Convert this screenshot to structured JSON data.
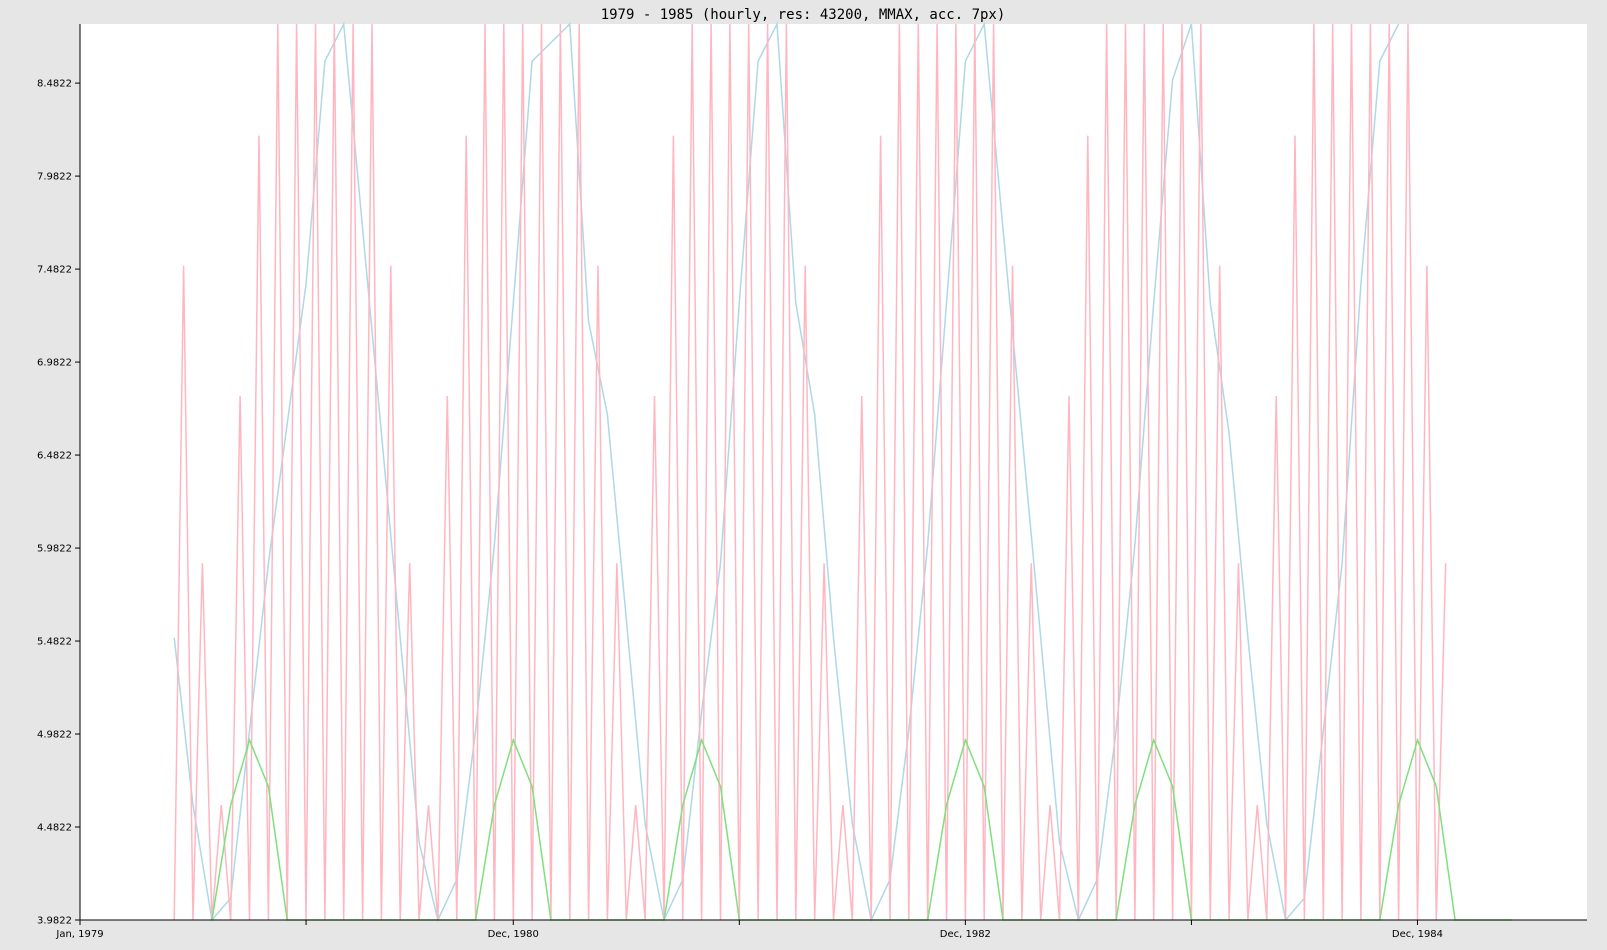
{
  "chart_data": {
    "type": "line",
    "title": "1979 - 1985 (hourly, res: 43200, MMAX, acc. 7px)",
    "xlabel": "",
    "ylabel": "",
    "x_range": [
      "1979-01",
      "1985-09"
    ],
    "ylim": [
      3.9822,
      8.8
    ],
    "y_ticks": [
      "3.9822",
      "4.4822",
      "4.9822",
      "5.4822",
      "5.9822",
      "6.4822",
      "6.9822",
      "7.4822",
      "7.9822",
      "8.4822"
    ],
    "x_ticks": [
      {
        "label": "Jan, 1979",
        "x": "1979-01"
      },
      {
        "label": "",
        "x": "1980-01"
      },
      {
        "label": "Dec, 1980",
        "x": "1980-12"
      },
      {
        "label": "",
        "x": "1981-12"
      },
      {
        "label": "Dec, 1982",
        "x": "1982-12"
      },
      {
        "label": "",
        "x": "1983-12"
      },
      {
        "label": "Dec, 1984",
        "x": "1984-12"
      },
      {
        "label": "",
        "x": "1985-12"
      }
    ],
    "grid": false,
    "legend": "none",
    "series": [
      {
        "color": "#add8e6",
        "x": [
          "1979-06",
          "1979-07",
          "1979-08",
          "1979-09",
          "1979-10",
          "1979-11",
          "1980-01",
          "1980-02",
          "1980-03",
          "1980-04",
          "1980-05",
          "1980-06",
          "1980-07",
          "1980-08",
          "1980-09",
          "1980-10",
          "1980-11",
          "1980-12",
          "1981-01",
          "1981-03",
          "1981-04",
          "1981-05",
          "1981-06",
          "1981-07",
          "1981-08",
          "1981-09",
          "1981-10",
          "1981-11",
          "1981-12",
          "1982-01",
          "1982-02",
          "1982-03",
          "1982-04",
          "1982-05",
          "1982-06",
          "1982-07",
          "1982-08",
          "1982-09",
          "1982-10",
          "1982-11",
          "1982-12",
          "1983-01",
          "1983-02",
          "1983-03",
          "1983-04",
          "1983-05",
          "1983-06",
          "1983-07",
          "1983-08",
          "1983-09",
          "1983-10",
          "1983-11",
          "1983-12",
          "1984-01",
          "1984-02",
          "1984-03",
          "1984-04",
          "1984-05",
          "1984-06",
          "1984-07",
          "1984-08",
          "1984-09",
          "1984-10",
          "1984-11"
        ],
        "values": [
          5.5,
          4.6,
          3.98,
          4.1,
          5.0,
          5.9,
          7.4,
          8.6,
          8.9,
          7.7,
          6.6,
          5.5,
          4.4,
          3.98,
          4.2,
          5.0,
          6.0,
          7.3,
          8.6,
          8.9,
          7.2,
          6.7,
          5.6,
          4.5,
          3.98,
          4.2,
          5.1,
          5.9,
          7.3,
          8.6,
          8.9,
          7.3,
          6.7,
          5.5,
          4.5,
          3.98,
          4.2,
          5.0,
          6.0,
          7.3,
          8.6,
          8.9,
          7.7,
          6.6,
          5.5,
          4.4,
          3.98,
          4.2,
          5.0,
          6.0,
          7.3,
          8.5,
          8.9,
          7.3,
          6.6,
          5.5,
          4.5,
          3.98,
          4.1,
          5.0,
          5.9,
          7.4,
          8.6,
          8.9
        ]
      },
      {
        "color": "#ffb6c1",
        "x": [
          "1979-06",
          "1979-06",
          "1979-07",
          "1979-07",
          "1979-08",
          "1979-08",
          "1979-09",
          "1979-09",
          "1979-10",
          "1979-10",
          "1979-11",
          "1979-11",
          "1979-12",
          "1979-12",
          "1980-01",
          "1980-01",
          "1980-02",
          "1980-02",
          "1980-03",
          "1980-03",
          "1980-04",
          "1980-04",
          "1980-05",
          "1980-05",
          "1980-06",
          "1980-06",
          "1980-07",
          "1980-07",
          "1980-08",
          "1980-08",
          "1980-09",
          "1980-09",
          "1980-10",
          "1980-10",
          "1980-11",
          "1980-11",
          "1980-12",
          "1980-12",
          "1981-01",
          "1981-01",
          "1981-02",
          "1981-02",
          "1981-03",
          "1981-03",
          "1981-04",
          "1981-04",
          "1981-05",
          "1981-05",
          "1981-06",
          "1981-06",
          "1981-07",
          "1981-07",
          "1981-08",
          "1981-08",
          "1981-09",
          "1981-09",
          "1981-10",
          "1981-10",
          "1981-11",
          "1981-11",
          "1981-12",
          "1981-12",
          "1982-01",
          "1982-01",
          "1982-02",
          "1982-02",
          "1982-03",
          "1982-03",
          "1982-04",
          "1982-04",
          "1982-05",
          "1982-05",
          "1982-06",
          "1982-06",
          "1982-07",
          "1982-07",
          "1982-08",
          "1982-08",
          "1982-09",
          "1982-09",
          "1982-10",
          "1982-10",
          "1982-11",
          "1982-11",
          "1982-12",
          "1982-12",
          "1983-01",
          "1983-01",
          "1983-02",
          "1983-02",
          "1983-03",
          "1983-03",
          "1983-04",
          "1983-04",
          "1983-05",
          "1983-05",
          "1983-06",
          "1983-06",
          "1983-07",
          "1983-07",
          "1983-08",
          "1983-08",
          "1983-09",
          "1983-09",
          "1983-10",
          "1983-10",
          "1983-11",
          "1983-11",
          "1983-12",
          "1983-12",
          "1984-01",
          "1984-01",
          "1984-02",
          "1984-02",
          "1984-03",
          "1984-03",
          "1984-04",
          "1984-04",
          "1984-05",
          "1984-05",
          "1984-06",
          "1984-06",
          "1984-07",
          "1984-07",
          "1984-08",
          "1984-08",
          "1984-09",
          "1984-09",
          "1984-10",
          "1984-10",
          "1984-11",
          "1984-11",
          "1984-12",
          "1984-12",
          "1985-01",
          "1985-01"
        ],
        "values": [
          3.98,
          7.5,
          3.98,
          5.9,
          3.98,
          4.6,
          3.98,
          6.8,
          3.98,
          8.2,
          3.98,
          8.9,
          3.98,
          8.9,
          3.98,
          8.9,
          3.98,
          8.9,
          3.98,
          8.9,
          3.98,
          8.9,
          3.98,
          7.5,
          3.98,
          5.9,
          3.98,
          4.6,
          3.98,
          6.8,
          3.98,
          8.2,
          3.98,
          8.9,
          3.98,
          8.9,
          3.98,
          8.9,
          3.98,
          8.9,
          3.98,
          8.9,
          3.98,
          8.9,
          3.98,
          7.5,
          3.98,
          5.9,
          3.98,
          4.6,
          3.98,
          6.8,
          3.98,
          8.2,
          3.98,
          8.9,
          3.98,
          8.9,
          3.98,
          8.9,
          3.98,
          8.9,
          3.98,
          8.9,
          3.98,
          8.9,
          3.98,
          7.5,
          3.98,
          5.9,
          3.98,
          4.6,
          3.98,
          6.8,
          3.98,
          8.2,
          3.98,
          8.9,
          3.98,
          8.9,
          3.98,
          8.9,
          3.98,
          8.9,
          3.98,
          8.9,
          3.98,
          8.9,
          3.98,
          7.5,
          3.98,
          5.9,
          3.98,
          4.6,
          3.98,
          6.8,
          3.98,
          8.2,
          3.98,
          8.9,
          3.98,
          8.9,
          3.98,
          8.9,
          3.98,
          8.9,
          3.98,
          8.9,
          3.98,
          8.9,
          3.98,
          7.5,
          3.98,
          5.9,
          3.98,
          4.6,
          3.98,
          6.8,
          3.98,
          8.2,
          3.98,
          8.9,
          3.98,
          8.9,
          3.98,
          8.9,
          3.98,
          8.9,
          3.98,
          8.9,
          3.98,
          8.9,
          3.98,
          7.5,
          3.98,
          5.9
        ]
      },
      {
        "color": "#7ee07e",
        "x": [
          "1979-08",
          "1979-09",
          "1979-10",
          "1979-11",
          "1979-12",
          "1980-01",
          "1980-02",
          "1980-03",
          "1980-10",
          "1980-11",
          "1980-12",
          "1981-01",
          "1981-02",
          "1981-03",
          "1981-04",
          "1981-05",
          "1981-08",
          "1981-09",
          "1981-10",
          "1981-11",
          "1981-12",
          "1982-01",
          "1982-02",
          "1982-03",
          "1982-10",
          "1982-11",
          "1982-12",
          "1983-01",
          "1983-02",
          "1983-03",
          "1983-04",
          "1983-05",
          "1983-08",
          "1983-09",
          "1983-10",
          "1983-11",
          "1983-12",
          "1984-01",
          "1984-02",
          "1984-03",
          "1984-10",
          "1984-11",
          "1984-12",
          "1985-01",
          "1985-02",
          "1985-03",
          "1985-04",
          "1985-05"
        ],
        "values": [
          3.98,
          4.6,
          4.95,
          4.7,
          3.98,
          3.98,
          3.98,
          3.98,
          3.98,
          4.6,
          4.95,
          4.7,
          3.98,
          3.98,
          3.98,
          3.98,
          3.98,
          4.6,
          4.95,
          4.7,
          3.98,
          3.98,
          3.98,
          3.98,
          3.98,
          4.6,
          4.95,
          4.7,
          3.98,
          3.98,
          3.98,
          3.98,
          3.98,
          4.6,
          4.95,
          4.7,
          3.98,
          3.98,
          3.98,
          3.98,
          3.98,
          4.6,
          4.95,
          4.7,
          3.98,
          3.98,
          3.98,
          3.98
        ]
      }
    ]
  }
}
